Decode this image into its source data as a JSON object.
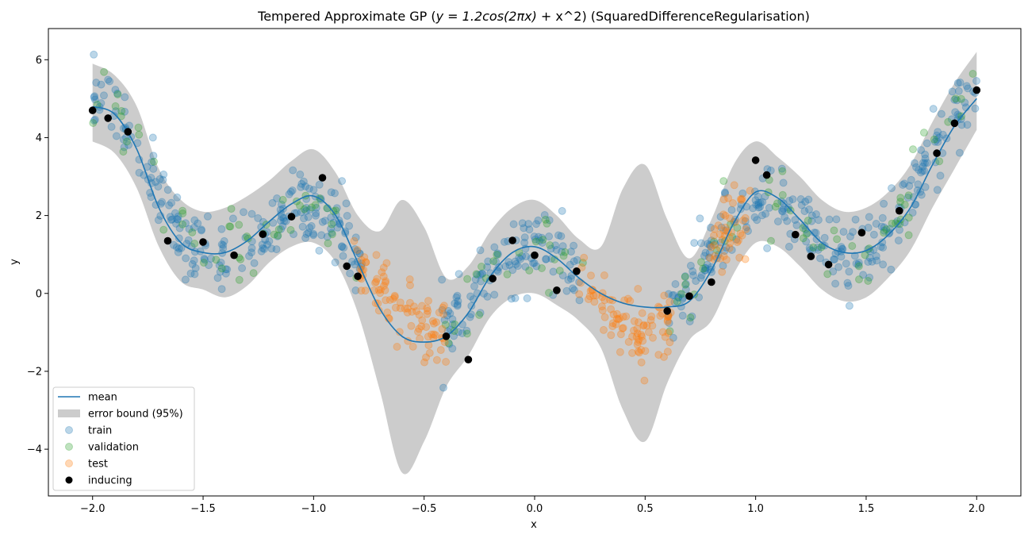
{
  "chart_data": {
    "type": "scatter",
    "title_prefix": "Tempered Approximate GP (",
    "title_math": "y = 1.2cos(2πx)",
    "title_suffix": " + x^2) (SquaredDifferenceRegularisation)",
    "xlabel": "x",
    "ylabel": "y",
    "xlim": [
      -2.2,
      2.2
    ],
    "ylim": [
      -5.2,
      6.8
    ],
    "xticks": [
      -2.0,
      -1.5,
      -1.0,
      -0.5,
      0.0,
      0.5,
      1.0,
      1.5,
      2.0
    ],
    "xtick_labels": [
      "−2.0",
      "−1.5",
      "−1.0",
      "−0.5",
      "0.0",
      "0.5",
      "1.0",
      "1.5",
      "2.0"
    ],
    "yticks": [
      -4,
      -2,
      0,
      2,
      4,
      6
    ],
    "ytick_labels": [
      "−4",
      "−2",
      "0",
      "2",
      "4",
      "6"
    ],
    "grid": false,
    "legend_position": "lower-left",
    "colors": {
      "mean": "#1f77b4",
      "band": "#cccccc",
      "train": "#1f77b4",
      "validation": "#2ca02c",
      "test": "#ff7f0e",
      "inducing": "#000000"
    },
    "legend": [
      {
        "key": "mean",
        "label": "mean"
      },
      {
        "key": "band",
        "label": "error bound (95%)"
      },
      {
        "key": "train",
        "label": "train"
      },
      {
        "key": "validation",
        "label": "validation"
      },
      {
        "key": "test",
        "label": "test"
      },
      {
        "key": "inducing",
        "label": "inducing"
      }
    ],
    "mean_curve": {
      "x": [
        -2.0,
        -1.9,
        -1.8,
        -1.7,
        -1.6,
        -1.5,
        -1.4,
        -1.3,
        -1.2,
        -1.1,
        -1.0,
        -0.9,
        -0.8,
        -0.7,
        -0.6,
        -0.5,
        -0.4,
        -0.3,
        -0.2,
        -0.1,
        0.0,
        0.1,
        0.2,
        0.3,
        0.4,
        0.5,
        0.6,
        0.7,
        0.8,
        0.9,
        1.0,
        1.1,
        1.2,
        1.3,
        1.4,
        1.5,
        1.6,
        1.7,
        1.8,
        1.9,
        2.0
      ],
      "y": [
        4.8,
        4.6,
        3.7,
        2.2,
        1.3,
        1.05,
        1.05,
        1.35,
        1.85,
        2.3,
        2.5,
        2.0,
        0.8,
        -0.4,
        -1.1,
        -1.25,
        -1.1,
        -0.5,
        0.45,
        1.05,
        1.2,
        0.9,
        0.4,
        0.0,
        -0.25,
        -0.35,
        -0.35,
        -0.2,
        0.6,
        1.8,
        2.6,
        2.45,
        1.9,
        1.3,
        1.05,
        1.1,
        1.5,
        2.2,
        3.3,
        4.3,
        5.0
      ]
    },
    "error_band": {
      "x": [
        -2.0,
        -1.9,
        -1.8,
        -1.7,
        -1.6,
        -1.5,
        -1.4,
        -1.3,
        -1.2,
        -1.1,
        -1.0,
        -0.9,
        -0.8,
        -0.7,
        -0.6,
        -0.5,
        -0.4,
        -0.3,
        -0.2,
        -0.1,
        0.0,
        0.1,
        0.2,
        0.3,
        0.4,
        0.5,
        0.6,
        0.7,
        0.8,
        0.9,
        1.0,
        1.1,
        1.2,
        1.3,
        1.4,
        1.5,
        1.6,
        1.7,
        1.8,
        1.9,
        2.0
      ],
      "upper": [
        5.9,
        5.6,
        4.8,
        3.2,
        2.4,
        2.1,
        2.2,
        2.5,
        2.9,
        3.4,
        3.7,
        3.1,
        2.0,
        1.6,
        2.4,
        1.7,
        0.4,
        0.7,
        1.6,
        2.2,
        2.4,
        2.0,
        1.4,
        1.2,
        2.7,
        3.3,
        1.9,
        0.9,
        1.9,
        3.3,
        3.9,
        3.5,
        3.0,
        2.4,
        2.1,
        2.2,
        2.6,
        3.3,
        4.4,
        5.4,
        6.2
      ],
      "lower": [
        3.9,
        3.6,
        2.7,
        1.2,
        0.3,
        0.1,
        -0.1,
        0.2,
        0.8,
        1.2,
        1.3,
        0.8,
        -0.5,
        -2.5,
        -4.6,
        -3.8,
        -2.4,
        -1.6,
        -0.6,
        -0.1,
        0.0,
        -0.3,
        -0.7,
        -1.4,
        -3.0,
        -3.8,
        -2.3,
        -1.2,
        -0.7,
        0.5,
        1.3,
        1.2,
        0.7,
        0.1,
        -0.2,
        -0.1,
        0.4,
        1.1,
        2.2,
        3.2,
        4.2
      ]
    },
    "inducing_points": {
      "x": [
        -2.0,
        -1.93,
        -1.84,
        -1.66,
        -1.5,
        -1.36,
        -1.23,
        -1.1,
        -0.96,
        -0.85,
        -0.8,
        -0.4,
        -0.3,
        -0.19,
        -0.1,
        0.0,
        0.1,
        0.19,
        0.6,
        0.7,
        0.8,
        1.0,
        1.05,
        1.18,
        1.25,
        1.33,
        1.48,
        1.65,
        1.82,
        1.9,
        2.0
      ],
      "y": [
        4.7,
        4.5,
        4.15,
        1.35,
        1.32,
        0.98,
        1.52,
        1.97,
        2.97,
        0.7,
        0.44,
        -1.1,
        -1.7,
        0.38,
        1.36,
        0.98,
        0.08,
        0.57,
        -0.45,
        -0.07,
        0.29,
        3.42,
        3.04,
        1.51,
        0.95,
        0.74,
        1.56,
        2.12,
        3.6,
        4.37,
        5.22
      ]
    },
    "scatter_generator": {
      "train_x_ranges": [
        [
          -2.0,
          -0.78
        ],
        [
          -0.42,
          0.22
        ],
        [
          0.6,
          2.0
        ]
      ],
      "test_x_ranges": [
        [
          -0.82,
          -0.4
        ],
        [
          0.2,
          0.62
        ],
        [
          0.78,
          0.98
        ]
      ],
      "validation_x_ranges": [
        [
          -2.0,
          -0.78
        ],
        [
          -0.42,
          0.22
        ],
        [
          0.6,
          2.0
        ]
      ],
      "function": "1.2cos(2πx) + x^2"
    }
  }
}
